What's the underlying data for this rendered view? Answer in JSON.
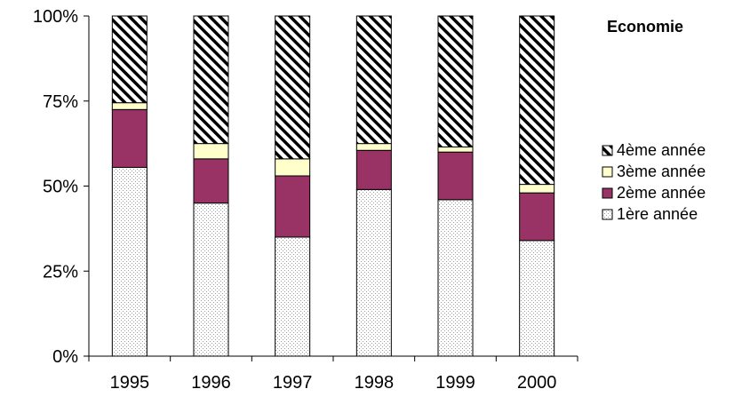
{
  "chart_data": {
    "type": "bar",
    "stacked": true,
    "percent": true,
    "title": "Economie",
    "categories": [
      "1995",
      "1996",
      "1997",
      "1998",
      "1999",
      "2000"
    ],
    "series": [
      {
        "name": "1ère année",
        "values": [
          55.5,
          45.0,
          35.0,
          49.0,
          46.0,
          34.0
        ],
        "pattern": "dots",
        "color": "#ffffff"
      },
      {
        "name": "2ème année",
        "values": [
          17.0,
          13.0,
          18.0,
          11.5,
          14.0,
          14.0
        ],
        "pattern": "solid",
        "color": "#993366"
      },
      {
        "name": "3ème année",
        "values": [
          2.0,
          4.5,
          5.0,
          2.0,
          1.5,
          2.5
        ],
        "pattern": "solid",
        "color": "#ffffcc"
      },
      {
        "name": "4ème année",
        "values": [
          25.5,
          37.5,
          42.0,
          37.5,
          38.5,
          49.5
        ],
        "pattern": "hatch",
        "color": "#ffffff"
      }
    ],
    "y_ticks": [
      "0%",
      "25%",
      "50%",
      "75%",
      "100%"
    ],
    "ylim": [
      0,
      100
    ],
    "legend_position": "right",
    "grid": false
  }
}
